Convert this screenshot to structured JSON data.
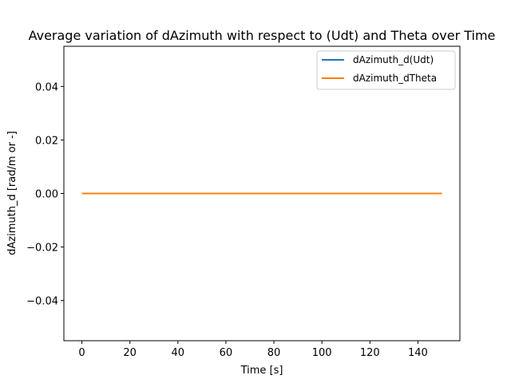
{
  "chart_data": {
    "type": "line",
    "title": "Average variation of dAzimuth with respect to (Udt) and Theta over Time",
    "xlabel": "Time [s]",
    "ylabel": "dAzimuth_d [rad/m or -]",
    "xlim": [
      -7.5,
      157.5
    ],
    "ylim": [
      -0.055,
      0.055
    ],
    "xticks": [
      0,
      20,
      40,
      60,
      80,
      100,
      120,
      140
    ],
    "xtick_labels": [
      "0",
      "20",
      "40",
      "60",
      "80",
      "100",
      "120",
      "140"
    ],
    "yticks": [
      -0.04,
      -0.02,
      0.0,
      0.02,
      0.04
    ],
    "ytick_labels": [
      "−0.04",
      "−0.02",
      "0.00",
      "0.02",
      "0.04"
    ],
    "grid": false,
    "legend_position": "upper right",
    "series": [
      {
        "name": "dAzimuth_d(Udt)",
        "color": "#1f77b4",
        "x": [
          0,
          150
        ],
        "y": [
          0,
          0
        ]
      },
      {
        "name": "dAzimuth_dTheta",
        "color": "#ff7f0e",
        "x": [
          0,
          150
        ],
        "y": [
          0,
          0
        ]
      }
    ]
  }
}
